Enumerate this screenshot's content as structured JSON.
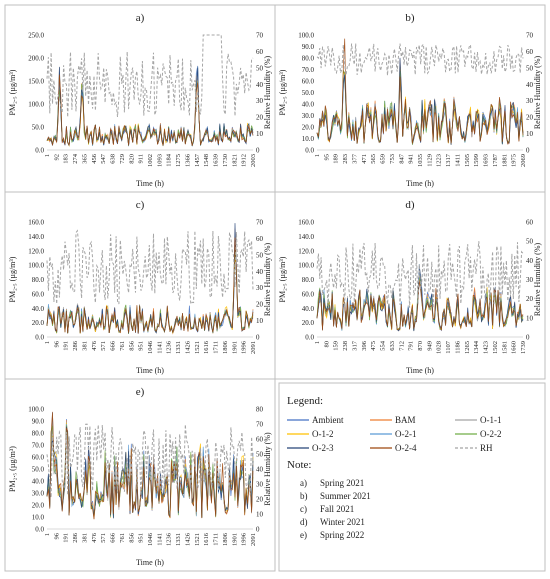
{
  "panels": [
    {
      "id": "a",
      "label": "a)",
      "ylabel_left": "PM₂.₅ (µg/m³)",
      "ylabel_right": "Relative Humidity (%)",
      "xlabel": "Time (h)",
      "y_left": {
        "min": 0,
        "max": 250,
        "ticks": [
          "0.0",
          "50.0",
          "100.0",
          "150.0",
          "200.0",
          "250.0"
        ]
      },
      "y_right": {
        "min": 0,
        "max": 70,
        "ticks": [
          "0",
          "10",
          "20",
          "30",
          "40",
          "50",
          "60",
          "70"
        ]
      },
      "x_ticks": [
        "1",
        "92",
        "183",
        "274",
        "365",
        "456",
        "547",
        "638",
        "729",
        "820",
        "911",
        "1002",
        "1093",
        "1184",
        "1275",
        "1366",
        "1457",
        "1548",
        "1639",
        "1730",
        "1821",
        "1912",
        "2003"
      ]
    },
    {
      "id": "b",
      "label": "b)",
      "ylabel_left": "PM₂.₅ (µg/m³)",
      "ylabel_right": "Relative Humidity (%)",
      "xlabel": "Time (h)",
      "y_left": {
        "min": 0,
        "max": 100,
        "ticks": [
          "0.0",
          "10.0",
          "20.0",
          "30.0",
          "40.0",
          "50.0",
          "60.0",
          "70.0",
          "80.0",
          "90.0",
          "100.0"
        ]
      },
      "y_right": {
        "min": 0,
        "max": 70,
        "ticks": [
          "0",
          "10",
          "20",
          "30",
          "40",
          "50",
          "60",
          "70"
        ]
      },
      "x_ticks": [
        "1",
        "95",
        "189",
        "283",
        "377",
        "471",
        "565",
        "659",
        "753",
        "847",
        "941",
        "1035",
        "1129",
        "1223",
        "1317",
        "1411",
        "1505",
        "1599",
        "1693",
        "1787",
        "1881",
        "1975",
        "2069"
      ]
    },
    {
      "id": "c",
      "label": "c)",
      "ylabel_left": "PM₂.₅ (µg/m³)",
      "ylabel_right": "Relative Humidity (%)",
      "xlabel": "Time (h)",
      "y_left": {
        "min": 0,
        "max": 160,
        "ticks": [
          "0.0",
          "20.0",
          "40.0",
          "60.0",
          "80.0",
          "100.0",
          "120.0",
          "140.0",
          "160.0"
        ]
      },
      "y_right": {
        "min": 0,
        "max": 70,
        "ticks": [
          "0",
          "10",
          "20",
          "30",
          "40",
          "50",
          "60",
          "70"
        ]
      },
      "x_ticks": [
        "1",
        "96",
        "191",
        "286",
        "381",
        "476",
        "571",
        "666",
        "761",
        "856",
        "951",
        "1046",
        "1141",
        "1236",
        "1331",
        "1426",
        "1521",
        "1616",
        "1711",
        "1806",
        "1901",
        "1996",
        "2091"
      ]
    },
    {
      "id": "d",
      "label": "d)",
      "ylabel_left": "PM₂.₅ (µg/m³)",
      "ylabel_right": "Relative Humidity (%)",
      "xlabel": "Time (h)",
      "y_left": {
        "min": 0,
        "max": 160,
        "ticks": [
          "0.0",
          "20.0",
          "40.0",
          "60.0",
          "80.0",
          "100.0",
          "120.0",
          "140.0",
          "160.0"
        ]
      },
      "y_right": {
        "min": 0,
        "max": 60,
        "ticks": [
          "0",
          "10",
          "20",
          "30",
          "40",
          "50",
          "60"
        ]
      },
      "x_ticks": [
        "1",
        "80",
        "159",
        "238",
        "317",
        "396",
        "475",
        "554",
        "633",
        "712",
        "791",
        "870",
        "949",
        "1028",
        "1107",
        "1186",
        "1265",
        "1344",
        "1423",
        "1502",
        "1581",
        "1660",
        "1739"
      ]
    },
    {
      "id": "e",
      "label": "e)",
      "ylabel_left": "PM₂.₅ (µg/m³)",
      "ylabel_right": "Relative Humidity (%)",
      "xlabel": "Time (h)",
      "y_left": {
        "min": 0,
        "max": 100,
        "ticks": [
          "0.0",
          "10.0",
          "20.0",
          "30.0",
          "40.0",
          "50.0",
          "60.0",
          "70.0",
          "80.0",
          "90.0",
          "100.0"
        ]
      },
      "y_right": {
        "min": 0,
        "max": 80,
        "ticks": [
          "0",
          "10",
          "20",
          "30",
          "40",
          "50",
          "60",
          "70",
          "80"
        ]
      },
      "x_ticks": [
        "1",
        "96",
        "191",
        "286",
        "381",
        "476",
        "571",
        "666",
        "761",
        "856",
        "951",
        "1046",
        "1141",
        "1236",
        "1331",
        "1426",
        "1521",
        "1616",
        "1711",
        "1806",
        "1901",
        "1996",
        "2091"
      ]
    }
  ],
  "legend": {
    "title": "Legend:",
    "items": [
      {
        "name": "Ambient",
        "color": "#4472c4",
        "dash": false
      },
      {
        "name": "BAM",
        "color": "#ed7d31",
        "dash": false
      },
      {
        "name": "O-1-1",
        "color": "#a5a5a5",
        "dash": false
      },
      {
        "name": "O-1-2",
        "color": "#ffc000",
        "dash": false
      },
      {
        "name": "O-2-1",
        "color": "#5b9bd5",
        "dash": false
      },
      {
        "name": "O-2-2",
        "color": "#70ad47",
        "dash": false
      },
      {
        "name": "O-2-3",
        "color": "#264478",
        "dash": false
      },
      {
        "name": "O-2-4",
        "color": "#9e480e",
        "dash": false
      },
      {
        "name": "RH",
        "color": "#a5a5a5",
        "dash": true
      }
    ]
  },
  "note": {
    "title": "Note:",
    "items": [
      {
        "letter": "a)",
        "text": "Spring 2021"
      },
      {
        "letter": "b)",
        "text": "Summer 2021"
      },
      {
        "letter": "c)",
        "text": "Fall 2021"
      },
      {
        "letter": "d)",
        "text": "Winter 2021"
      },
      {
        "letter": "e)",
        "text": "Spring 2022"
      }
    ]
  },
  "chart_data": [
    {
      "type": "line",
      "panel": "a",
      "x_range": [
        1,
        2100
      ],
      "ylim_left": [
        0,
        250
      ],
      "ylim_right": [
        0,
        70
      ],
      "series_approx_pm25": {
        "typical": [
          10,
          50
        ],
        "peaks": [
          {
            "x": 130,
            "y": 175
          },
          {
            "x": 360,
            "y": 160
          },
          {
            "x": 1530,
            "y": 210
          }
        ]
      },
      "series_rh": {
        "typical": [
          20,
          60
        ],
        "plateau": {
          "x": [
            1580,
            1780
          ],
          "y": 70
        }
      }
    },
    {
      "type": "line",
      "panel": "b",
      "x_range": [
        1,
        2100
      ],
      "ylim_left": [
        0,
        100
      ],
      "ylim_right": [
        0,
        70
      ],
      "series_approx_pm25": {
        "typical": [
          5,
          40
        ],
        "peaks": [
          {
            "x": 280,
            "y": 90
          },
          {
            "x": 850,
            "y": 75
          }
        ]
      },
      "series_rh": {
        "typical": [
          45,
          65
        ]
      }
    },
    {
      "type": "line",
      "panel": "c",
      "x_range": [
        1,
        2100
      ],
      "ylim_left": [
        0,
        160
      ],
      "ylim_right": [
        0,
        70
      ],
      "series_approx_pm25": {
        "typical": [
          5,
          40
        ],
        "peaks": [
          {
            "x": 1920,
            "y": 150
          }
        ]
      },
      "series_rh": {
        "typical": [
          20,
          65
        ]
      }
    },
    {
      "type": "line",
      "panel": "d",
      "x_range": [
        1,
        1800
      ],
      "ylim_left": [
        0,
        160
      ],
      "ylim_right": [
        0,
        60
      ],
      "series_approx_pm25": {
        "typical": [
          10,
          60
        ],
        "peaks": [
          {
            "x": 900,
            "y": 100
          }
        ]
      },
      "series_rh": {
        "typical": [
          15,
          50
        ]
      }
    },
    {
      "type": "line",
      "panel": "e",
      "x_range": [
        1,
        2100
      ],
      "ylim_left": [
        0,
        100
      ],
      "ylim_right": [
        0,
        80
      ],
      "series_approx_pm25": {
        "typical": [
          10,
          60
        ],
        "peaks": [
          {
            "x": 60,
            "y": 90
          },
          {
            "x": 200,
            "y": 88
          }
        ]
      },
      "series_rh": {
        "typical": [
          20,
          70
        ]
      }
    }
  ]
}
